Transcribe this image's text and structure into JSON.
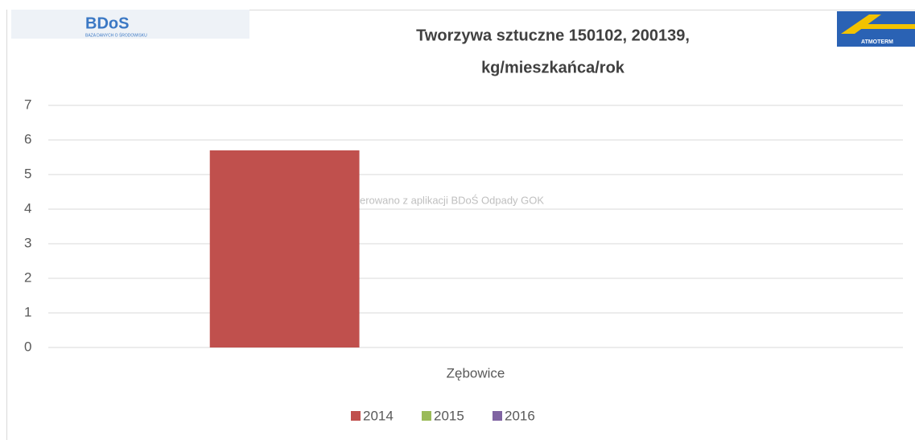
{
  "chart_data": {
    "type": "bar",
    "title": "Tworzywa sztuczne 150102, 200139,",
    "subtitle": "kg/mieszkańca/rok",
    "categories": [
      "Zębowice"
    ],
    "series": [
      {
        "name": "2014",
        "color": "#c0504d",
        "values": [
          5.7
        ]
      },
      {
        "name": "2015",
        "color": "#9bbb59",
        "values": [
          null
        ]
      },
      {
        "name": "2016",
        "color": "#8064a2",
        "values": [
          null
        ]
      }
    ],
    "ylim": [
      0,
      7
    ],
    "yticks": [
      0,
      1,
      2,
      3,
      4,
      5,
      6,
      7
    ],
    "grid": true,
    "legend": "bottom",
    "annotations": [
      "erowano z aplikacji BDoŚ Odpady GOK",
      "BDoS",
      "BAZA DANYCH O ŚRODOWISKU",
      "ATMOTERM"
    ]
  }
}
